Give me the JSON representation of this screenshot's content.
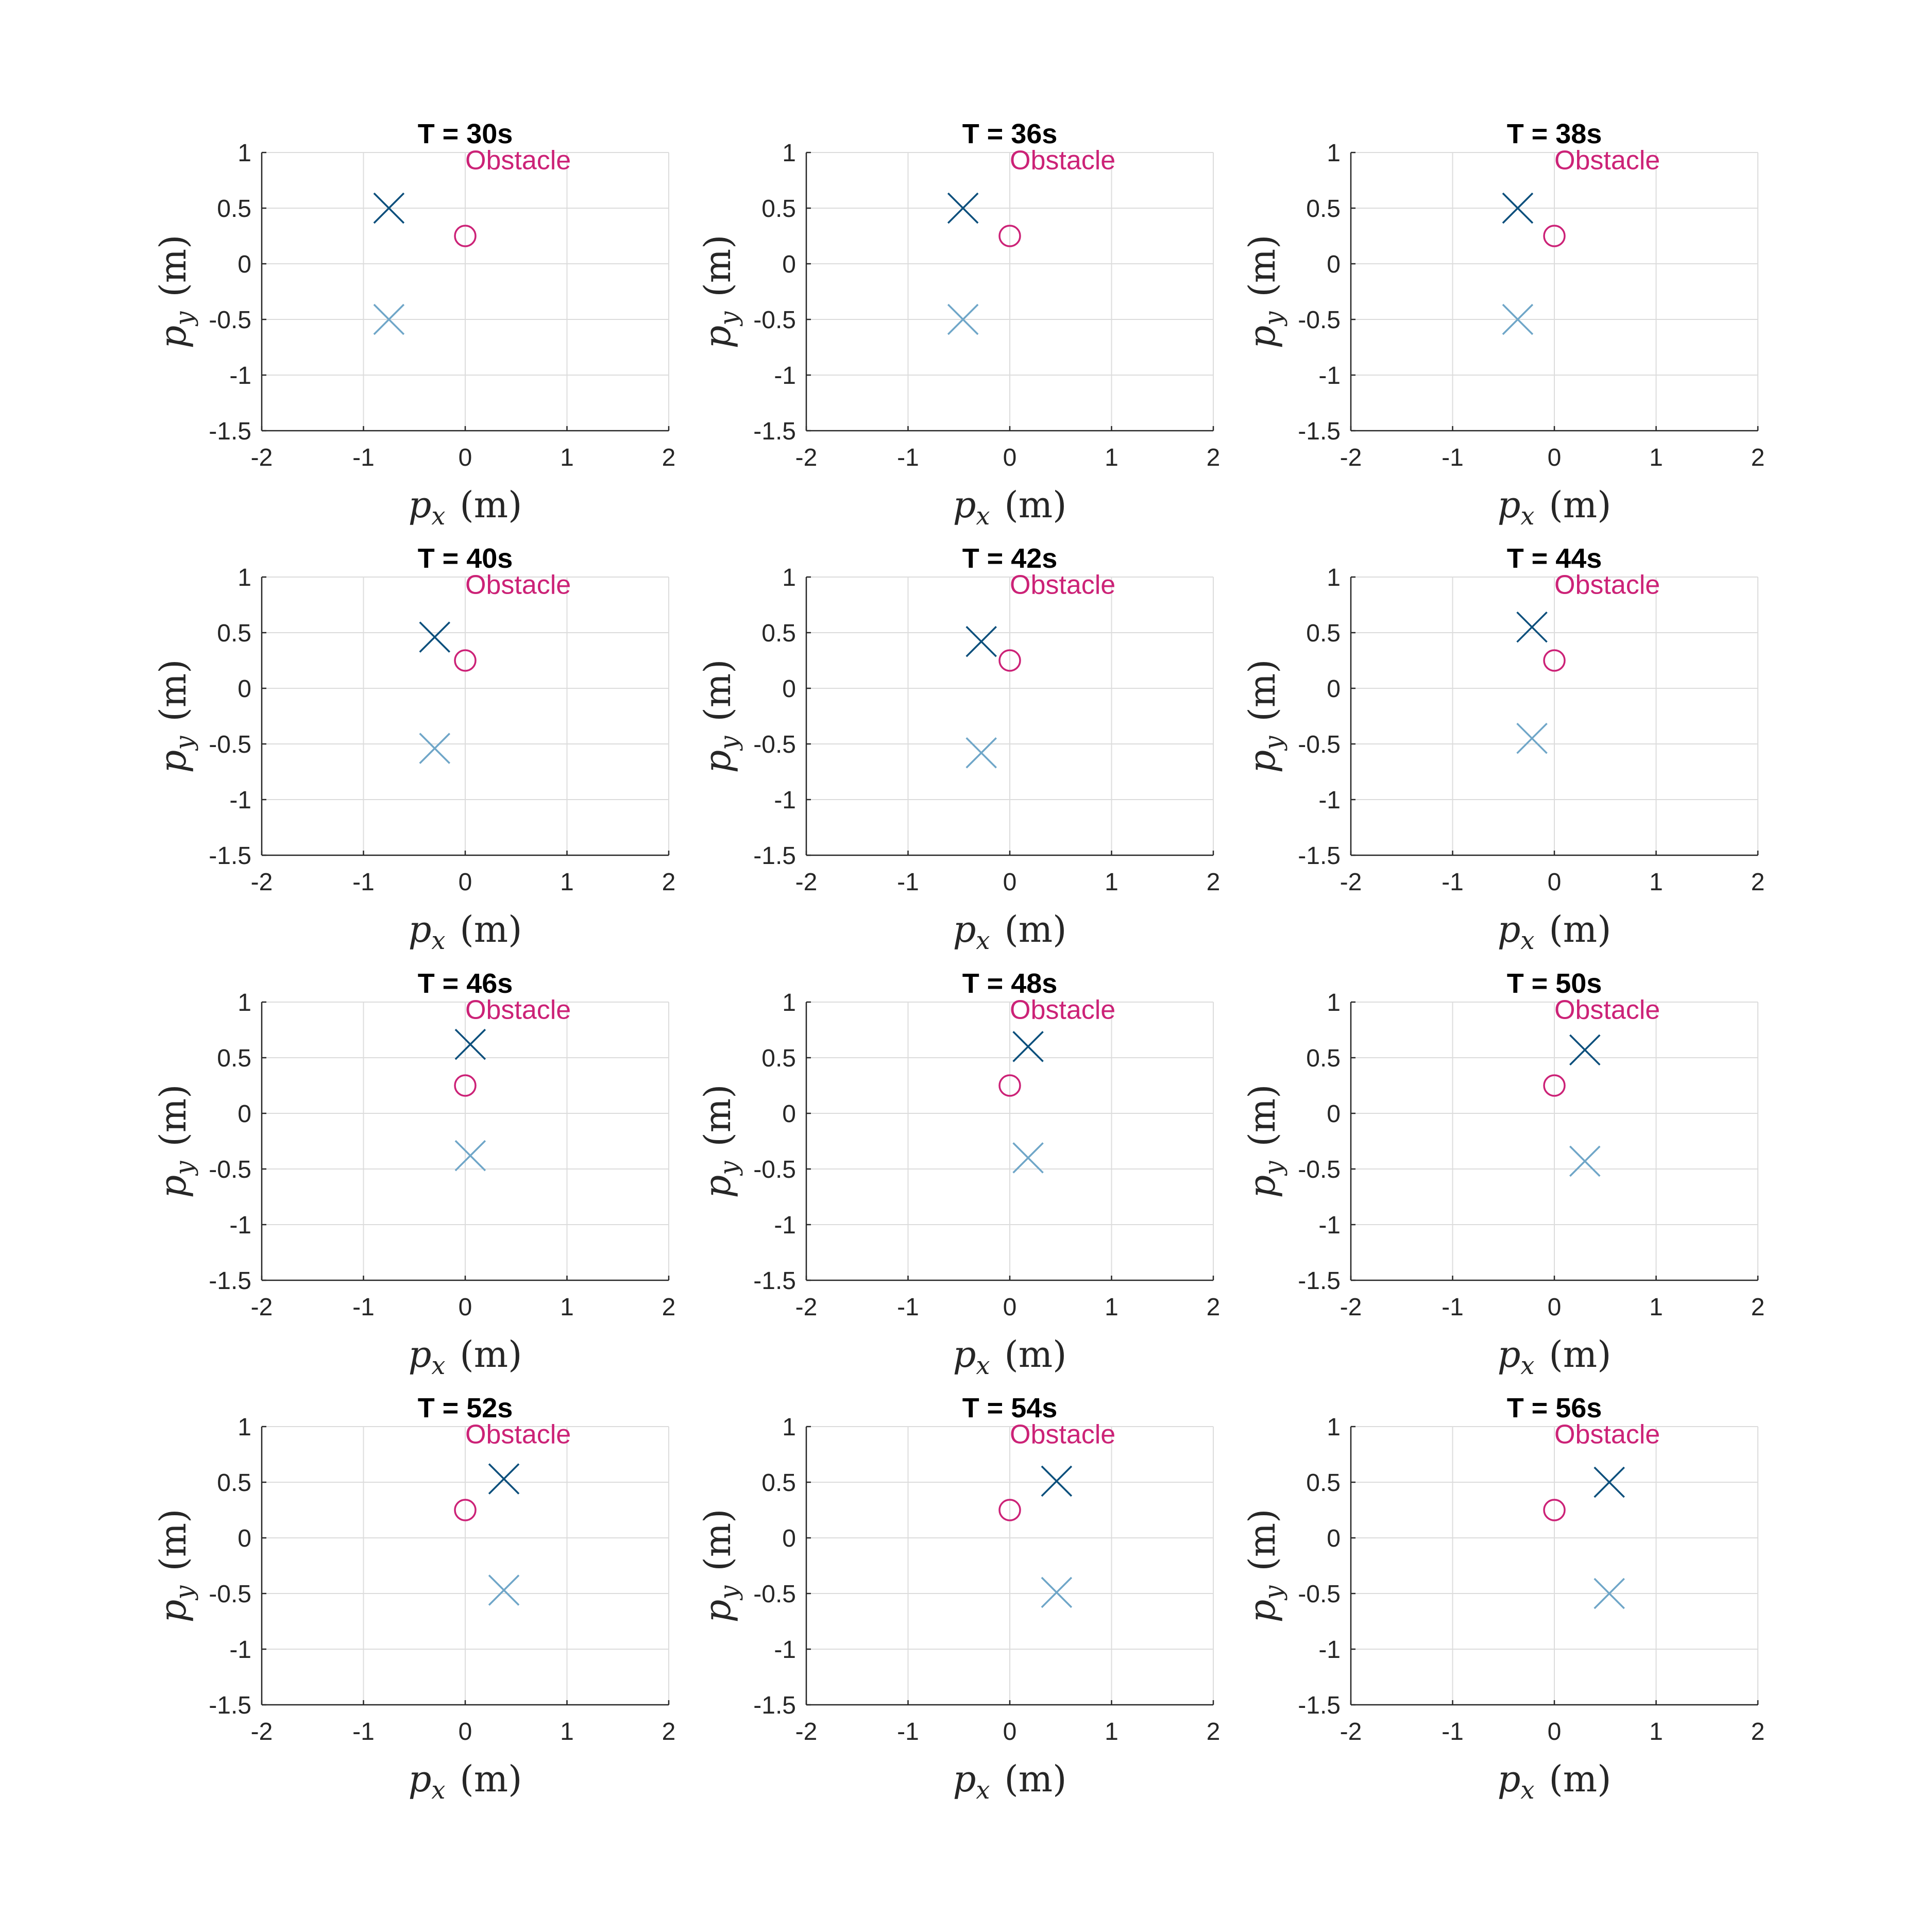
{
  "chart_data": [
    {
      "type": "scatter",
      "title": "T = 30s",
      "annotation": "Obstacle",
      "xlabel": "p_x (m)",
      "ylabel": "p_y (m)",
      "xlim": [
        -2,
        2
      ],
      "ylim": [
        -1.5,
        1
      ],
      "xticks": [
        "-2",
        "-1",
        "0",
        "1",
        "2"
      ],
      "yticks": [
        "1",
        "0.5",
        "0",
        "-0.5",
        "-1",
        "-1.5"
      ],
      "grid": true,
      "series": [
        {
          "marker": "x",
          "color": "#0b4f7c",
          "points": [
            [
              -0.75,
              0.5
            ]
          ]
        },
        {
          "marker": "x",
          "color": "#6fa6c8",
          "points": [
            [
              -0.75,
              -0.5
            ]
          ]
        },
        {
          "marker": "circle",
          "color": "#cc2277",
          "points": [
            [
              0,
              0.25
            ]
          ]
        }
      ]
    },
    {
      "type": "scatter",
      "title": "T = 36s",
      "annotation": "Obstacle",
      "xlabel": "p_x (m)",
      "ylabel": "p_y (m)",
      "xlim": [
        -2,
        2
      ],
      "ylim": [
        -1.5,
        1
      ],
      "xticks": [
        "-2",
        "-1",
        "0",
        "1",
        "2"
      ],
      "yticks": [
        "1",
        "0.5",
        "0",
        "-0.5",
        "-1",
        "-1.5"
      ],
      "grid": true,
      "series": [
        {
          "marker": "x",
          "color": "#0b4f7c",
          "points": [
            [
              -0.46,
              0.5
            ]
          ]
        },
        {
          "marker": "x",
          "color": "#6fa6c8",
          "points": [
            [
              -0.46,
              -0.5
            ]
          ]
        },
        {
          "marker": "circle",
          "color": "#cc2277",
          "points": [
            [
              0,
              0.25
            ]
          ]
        }
      ]
    },
    {
      "type": "scatter",
      "title": "T = 38s",
      "annotation": "Obstacle",
      "xlabel": "p_x (m)",
      "ylabel": "p_y (m)",
      "xlim": [
        -2,
        2
      ],
      "ylim": [
        -1.5,
        1
      ],
      "xticks": [
        "-2",
        "-1",
        "0",
        "1",
        "2"
      ],
      "yticks": [
        "1",
        "0.5",
        "0",
        "-0.5",
        "-1",
        "-1.5"
      ],
      "grid": true,
      "series": [
        {
          "marker": "x",
          "color": "#0b4f7c",
          "points": [
            [
              -0.36,
              0.5
            ]
          ]
        },
        {
          "marker": "x",
          "color": "#6fa6c8",
          "points": [
            [
              -0.36,
              -0.5
            ]
          ]
        },
        {
          "marker": "circle",
          "color": "#cc2277",
          "points": [
            [
              0,
              0.25
            ]
          ]
        }
      ]
    },
    {
      "type": "scatter",
      "title": "T = 40s",
      "annotation": "Obstacle",
      "xlabel": "p_x (m)",
      "ylabel": "p_y (m)",
      "xlim": [
        -2,
        2
      ],
      "ylim": [
        -1.5,
        1
      ],
      "xticks": [
        "-2",
        "-1",
        "0",
        "1",
        "2"
      ],
      "yticks": [
        "1",
        "0.5",
        "0",
        "-0.5",
        "-1",
        "-1.5"
      ],
      "grid": true,
      "series": [
        {
          "marker": "x",
          "color": "#0b4f7c",
          "points": [
            [
              -0.3,
              0.46
            ]
          ]
        },
        {
          "marker": "x",
          "color": "#6fa6c8",
          "points": [
            [
              -0.3,
              -0.54
            ]
          ]
        },
        {
          "marker": "circle",
          "color": "#cc2277",
          "points": [
            [
              0,
              0.25
            ]
          ]
        }
      ]
    },
    {
      "type": "scatter",
      "title": "T = 42s",
      "annotation": "Obstacle",
      "xlabel": "p_x (m)",
      "ylabel": "p_y (m)",
      "xlim": [
        -2,
        2
      ],
      "ylim": [
        -1.5,
        1
      ],
      "xticks": [
        "-2",
        "-1",
        "0",
        "1",
        "2"
      ],
      "yticks": [
        "1",
        "0.5",
        "0",
        "-0.5",
        "-1",
        "-1.5"
      ],
      "grid": true,
      "series": [
        {
          "marker": "x",
          "color": "#0b4f7c",
          "points": [
            [
              -0.28,
              0.42
            ]
          ]
        },
        {
          "marker": "x",
          "color": "#6fa6c8",
          "points": [
            [
              -0.28,
              -0.58
            ]
          ]
        },
        {
          "marker": "circle",
          "color": "#cc2277",
          "points": [
            [
              0,
              0.25
            ]
          ]
        }
      ]
    },
    {
      "type": "scatter",
      "title": "T = 44s",
      "annotation": "Obstacle",
      "xlabel": "p_x (m)",
      "ylabel": "p_y (m)",
      "xlim": [
        -2,
        2
      ],
      "ylim": [
        -1.5,
        1
      ],
      "xticks": [
        "-2",
        "-1",
        "0",
        "1",
        "2"
      ],
      "yticks": [
        "1",
        "0.5",
        "0",
        "-0.5",
        "-1",
        "-1.5"
      ],
      "grid": true,
      "series": [
        {
          "marker": "x",
          "color": "#0b4f7c",
          "points": [
            [
              -0.22,
              0.55
            ]
          ]
        },
        {
          "marker": "x",
          "color": "#6fa6c8",
          "points": [
            [
              -0.22,
              -0.45
            ]
          ]
        },
        {
          "marker": "circle",
          "color": "#cc2277",
          "points": [
            [
              0,
              0.25
            ]
          ]
        }
      ]
    },
    {
      "type": "scatter",
      "title": "T = 46s",
      "annotation": "Obstacle",
      "xlabel": "p_x (m)",
      "ylabel": "p_y (m)",
      "xlim": [
        -2,
        2
      ],
      "ylim": [
        -1.5,
        1
      ],
      "xticks": [
        "-2",
        "-1",
        "0",
        "1",
        "2"
      ],
      "yticks": [
        "1",
        "0.5",
        "0",
        "-0.5",
        "-1",
        "-1.5"
      ],
      "grid": true,
      "series": [
        {
          "marker": "x",
          "color": "#0b4f7c",
          "points": [
            [
              0.05,
              0.62
            ]
          ]
        },
        {
          "marker": "x",
          "color": "#6fa6c8",
          "points": [
            [
              0.05,
              -0.38
            ]
          ]
        },
        {
          "marker": "circle",
          "color": "#cc2277",
          "points": [
            [
              0,
              0.25
            ]
          ]
        }
      ]
    },
    {
      "type": "scatter",
      "title": "T = 48s",
      "annotation": "Obstacle",
      "xlabel": "p_x (m)",
      "ylabel": "p_y (m)",
      "xlim": [
        -2,
        2
      ],
      "ylim": [
        -1.5,
        1
      ],
      "xticks": [
        "-2",
        "-1",
        "0",
        "1",
        "2"
      ],
      "yticks": [
        "1",
        "0.5",
        "0",
        "-0.5",
        "-1",
        "-1.5"
      ],
      "grid": true,
      "series": [
        {
          "marker": "x",
          "color": "#0b4f7c",
          "points": [
            [
              0.18,
              0.6
            ]
          ]
        },
        {
          "marker": "x",
          "color": "#6fa6c8",
          "points": [
            [
              0.18,
              -0.4
            ]
          ]
        },
        {
          "marker": "circle",
          "color": "#cc2277",
          "points": [
            [
              0,
              0.25
            ]
          ]
        }
      ]
    },
    {
      "type": "scatter",
      "title": "T = 50s",
      "annotation": "Obstacle",
      "xlabel": "p_x (m)",
      "ylabel": "p_y (m)",
      "xlim": [
        -2,
        2
      ],
      "ylim": [
        -1.5,
        1
      ],
      "xticks": [
        "-2",
        "-1",
        "0",
        "1",
        "2"
      ],
      "yticks": [
        "1",
        "0.5",
        "0",
        "-0.5",
        "-1",
        "-1.5"
      ],
      "grid": true,
      "series": [
        {
          "marker": "x",
          "color": "#0b4f7c",
          "points": [
            [
              0.3,
              0.57
            ]
          ]
        },
        {
          "marker": "x",
          "color": "#6fa6c8",
          "points": [
            [
              0.3,
              -0.43
            ]
          ]
        },
        {
          "marker": "circle",
          "color": "#cc2277",
          "points": [
            [
              0,
              0.25
            ]
          ]
        }
      ]
    },
    {
      "type": "scatter",
      "title": "T = 52s",
      "annotation": "Obstacle",
      "xlabel": "p_x (m)",
      "ylabel": "p_y (m)",
      "xlim": [
        -2,
        2
      ],
      "ylim": [
        -1.5,
        1
      ],
      "xticks": [
        "-2",
        "-1",
        "0",
        "1",
        "2"
      ],
      "yticks": [
        "1",
        "0.5",
        "0",
        "-0.5",
        "-1",
        "-1.5"
      ],
      "grid": true,
      "series": [
        {
          "marker": "x",
          "color": "#0b4f7c",
          "points": [
            [
              0.38,
              0.53
            ]
          ]
        },
        {
          "marker": "x",
          "color": "#6fa6c8",
          "points": [
            [
              0.38,
              -0.47
            ]
          ]
        },
        {
          "marker": "circle",
          "color": "#cc2277",
          "points": [
            [
              0,
              0.25
            ]
          ]
        }
      ]
    },
    {
      "type": "scatter",
      "title": "T = 54s",
      "annotation": "Obstacle",
      "xlabel": "p_x (m)",
      "ylabel": "p_y (m)",
      "xlim": [
        -2,
        2
      ],
      "ylim": [
        -1.5,
        1
      ],
      "xticks": [
        "-2",
        "-1",
        "0",
        "1",
        "2"
      ],
      "yticks": [
        "1",
        "0.5",
        "0",
        "-0.5",
        "-1",
        "-1.5"
      ],
      "grid": true,
      "series": [
        {
          "marker": "x",
          "color": "#0b4f7c",
          "points": [
            [
              0.46,
              0.51
            ]
          ]
        },
        {
          "marker": "x",
          "color": "#6fa6c8",
          "points": [
            [
              0.46,
              -0.49
            ]
          ]
        },
        {
          "marker": "circle",
          "color": "#cc2277",
          "points": [
            [
              0,
              0.25
            ]
          ]
        }
      ]
    },
    {
      "type": "scatter",
      "title": "T = 56s",
      "annotation": "Obstacle",
      "xlabel": "p_x (m)",
      "ylabel": "p_y (m)",
      "xlim": [
        -2,
        2
      ],
      "ylim": [
        -1.5,
        1
      ],
      "xticks": [
        "-2",
        "-1",
        "0",
        "1",
        "2"
      ],
      "yticks": [
        "1",
        "0.5",
        "0",
        "-0.5",
        "-1",
        "-1.5"
      ],
      "grid": true,
      "series": [
        {
          "marker": "x",
          "color": "#0b4f7c",
          "points": [
            [
              0.54,
              0.5
            ]
          ]
        },
        {
          "marker": "x",
          "color": "#6fa6c8",
          "points": [
            [
              0.54,
              -0.5
            ]
          ]
        },
        {
          "marker": "circle",
          "color": "#cc2277",
          "points": [
            [
              0,
              0.25
            ]
          ]
        }
      ]
    }
  ]
}
